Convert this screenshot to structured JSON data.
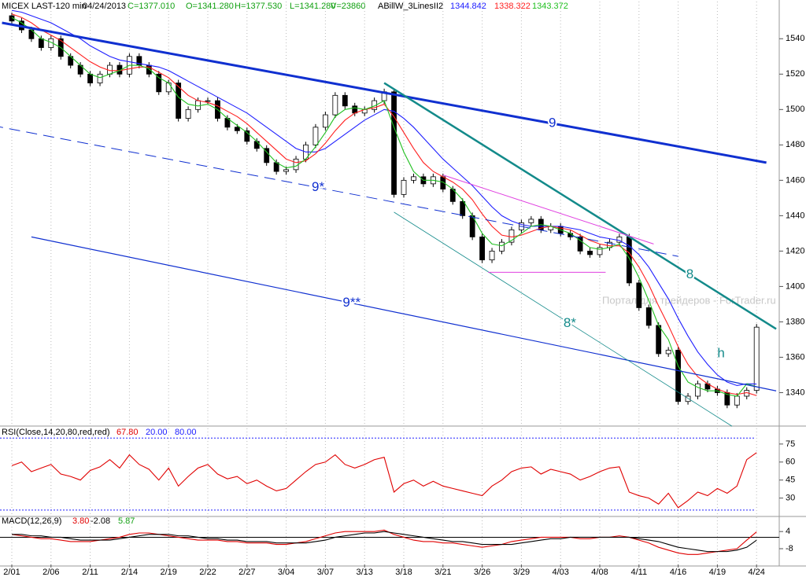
{
  "chart_data": [
    {
      "type": "candlestick",
      "title": "MICEX LAST-120 min",
      "date": "04/24/2013",
      "header": [
        "C=1377.010",
        "O=1341.280",
        "H=1377.530",
        "L=1341.280",
        "V=23860"
      ],
      "indicator": "ABillW_3LinesII2",
      "watermark": "Портал для трейдеров - ForTrader.ru",
      "categories": [
        "2/01",
        null,
        null,
        null,
        "2/06",
        null,
        null,
        null,
        "2/11",
        null,
        null,
        null,
        "2/14",
        null,
        null,
        null,
        "2/19",
        null,
        null,
        null,
        "2/22",
        null,
        null,
        null,
        "2/27",
        null,
        null,
        null,
        "3/04",
        null,
        null,
        null,
        "3/07",
        null,
        null,
        null,
        "3/13",
        null,
        null,
        null,
        "3/18",
        null,
        null,
        null,
        "3/21",
        null,
        null,
        null,
        "3/26",
        null,
        null,
        null,
        "3/29",
        null,
        null,
        null,
        "4/03",
        null,
        null,
        null,
        "4/08",
        null,
        null,
        null,
        "4/11",
        null,
        null,
        null,
        "4/16",
        null,
        null,
        null,
        "4/19",
        null,
        null,
        null,
        "4/24"
      ],
      "open": [
        1553,
        1550,
        1545,
        1540,
        1535,
        1540,
        1530,
        1525,
        1520,
        1515,
        1520,
        1525,
        1520,
        1530,
        1525,
        1520,
        1510,
        1515,
        1495,
        1500,
        1505,
        1505,
        1495,
        1490,
        1488,
        1482,
        1478,
        1470,
        1465,
        1466,
        1472,
        1480,
        1490,
        1497,
        1508,
        1502,
        1498,
        1500,
        1505,
        1510,
        1452,
        1460,
        1462,
        1458,
        1462,
        1455,
        1448,
        1440,
        1428,
        1415,
        1420,
        1425,
        1432,
        1436,
        1438,
        1432,
        1434,
        1430,
        1428,
        1420,
        1418,
        1422,
        1425,
        1428,
        1402,
        1388,
        1378,
        1362,
        1364,
        1335,
        1338,
        1345,
        1342,
        1340,
        1333,
        1338,
        1341.28
      ],
      "close": [
        1550,
        1545,
        1540,
        1535,
        1540,
        1530,
        1525,
        1520,
        1515,
        1520,
        1525,
        1520,
        1530,
        1525,
        1520,
        1510,
        1515,
        1495,
        1500,
        1505,
        1505,
        1495,
        1490,
        1488,
        1482,
        1478,
        1470,
        1465,
        1466,
        1472,
        1480,
        1490,
        1497,
        1508,
        1502,
        1498,
        1500,
        1505,
        1510,
        1452,
        1460,
        1462,
        1458,
        1462,
        1455,
        1448,
        1440,
        1428,
        1415,
        1420,
        1425,
        1432,
        1436,
        1438,
        1432,
        1434,
        1430,
        1428,
        1420,
        1418,
        1422,
        1425,
        1428,
        1402,
        1388,
        1378,
        1362,
        1364,
        1335,
        1338,
        1345,
        1342,
        1340,
        1333,
        1338,
        1341.28,
        1377.01
      ],
      "series": [
        {
          "name": "1344.842",
          "color": "#2020ff",
          "values": [
            1556,
            1555,
            1553,
            1551,
            1549,
            1546,
            1543,
            1540,
            1536,
            1533,
            1530,
            1528,
            1527,
            1526,
            1525,
            1524,
            1522,
            1519,
            1516,
            1513,
            1510,
            1507,
            1504,
            1501,
            1498,
            1494,
            1490,
            1486,
            1482,
            1478,
            1476,
            1476,
            1478,
            1482,
            1486,
            1490,
            1494,
            1497,
            1500,
            1499,
            1495,
            1490,
            1484,
            1478,
            1472,
            1467,
            1462,
            1457,
            1451,
            1445,
            1440,
            1437,
            1435,
            1434,
            1434,
            1434,
            1434,
            1433,
            1432,
            1430,
            1428,
            1427,
            1426,
            1423,
            1418,
            1411,
            1402,
            1393,
            1382,
            1372,
            1363,
            1356,
            1350,
            1346,
            1344,
            1345,
            1344.842
          ]
        },
        {
          "name": "1338.322",
          "color": "#ff2020",
          "values": [
            1554,
            1552,
            1549,
            1545,
            1542,
            1539,
            1535,
            1531,
            1527,
            1524,
            1522,
            1522,
            1523,
            1524,
            1524,
            1521,
            1518,
            1513,
            1508,
            1505,
            1504,
            1502,
            1499,
            1496,
            1492,
            1487,
            1482,
            1477,
            1472,
            1470,
            1471,
            1475,
            1481,
            1488,
            1494,
            1498,
            1500,
            1501,
            1503,
            1496,
            1487,
            1478,
            1470,
            1465,
            1462,
            1459,
            1455,
            1449,
            1441,
            1434,
            1429,
            1428,
            1429,
            1431,
            1433,
            1434,
            1433,
            1432,
            1429,
            1426,
            1424,
            1423,
            1423,
            1419,
            1411,
            1401,
            1389,
            1378,
            1366,
            1356,
            1349,
            1345,
            1342,
            1340,
            1339,
            1340,
            1338.322
          ]
        },
        {
          "name": "1343.372",
          "color": "#20c020",
          "values": [
            1552,
            1549,
            1545,
            1540,
            1538,
            1535,
            1530,
            1525,
            1520,
            1518,
            1520,
            1522,
            1525,
            1525,
            1523,
            1518,
            1515,
            1507,
            1503,
            1502,
            1503,
            1500,
            1495,
            1491,
            1487,
            1482,
            1476,
            1470,
            1467,
            1468,
            1472,
            1479,
            1487,
            1496,
            1500,
            1501,
            1500,
            1502,
            1505,
            1490,
            1476,
            1465,
            1460,
            1460,
            1459,
            1455,
            1449,
            1440,
            1430,
            1424,
            1423,
            1426,
            1430,
            1434,
            1435,
            1434,
            1432,
            1430,
            1426,
            1422,
            1421,
            1422,
            1424,
            1416,
            1405,
            1392,
            1378,
            1370,
            1355,
            1346,
            1343,
            1341,
            1341,
            1339,
            1338,
            1345,
            1343.372
          ]
        }
      ],
      "ylim": [
        1322,
        1561
      ],
      "yticks": [
        1340,
        1360,
        1380,
        1400,
        1420,
        1440,
        1460,
        1480,
        1500,
        1520,
        1540
      ],
      "trendlines": [
        {
          "label": "9",
          "from": [
            -1,
            1549
          ],
          "to": [
            77,
            1470
          ],
          "color": "#1030d0",
          "width": 3
        },
        {
          "label": "9*",
          "from": [
            -2,
            1491
          ],
          "to": [
            68,
            1417
          ],
          "color": "#1030d0",
          "width": 1,
          "dashed": true
        },
        {
          "label": "9**",
          "from": [
            2,
            1428
          ],
          "to": [
            78,
            1341
          ],
          "color": "#1030d0",
          "width": 1.2
        },
        {
          "label": "8",
          "from": [
            38,
            1515
          ],
          "to": [
            78,
            1376
          ],
          "color": "#138a8a",
          "width": 2.5
        },
        {
          "label": "8*",
          "from": [
            39,
            1442
          ],
          "to": [
            73.5,
            1321
          ],
          "color": "#138a8a",
          "width": 0.8
        },
        {
          "from": [
            44,
            1463
          ],
          "to": [
            65.5,
            1424
          ],
          "color": "#e040e0",
          "width": 1
        },
        {
          "from": [
            48.6,
            1408
          ],
          "to": [
            60.6,
            1408
          ],
          "color": "#e040e0",
          "width": 1
        }
      ],
      "annotations": [
        {
          "text": "h",
          "x": 72,
          "y": 1362,
          "color": "#138a8a"
        }
      ]
    },
    {
      "type": "line",
      "title": "RSI(Close,14,20,80,red,red)",
      "series": [
        {
          "color": "#e00000",
          "last_label": "67.80",
          "values": [
            57,
            60,
            52,
            55,
            58,
            50,
            48,
            45,
            53,
            56,
            62,
            55,
            66,
            58,
            54,
            45,
            55,
            40,
            48,
            55,
            58,
            50,
            46,
            48,
            42,
            45,
            40,
            36,
            38,
            45,
            52,
            58,
            60,
            66,
            58,
            55,
            58,
            62,
            64,
            35,
            42,
            45,
            40,
            44,
            40,
            38,
            36,
            34,
            32,
            40,
            45,
            52,
            55,
            56,
            50,
            54,
            52,
            50,
            45,
            48,
            52,
            55,
            56,
            35,
            32,
            30,
            25,
            34,
            22,
            28,
            35,
            32,
            38,
            34,
            40,
            62,
            67.8
          ]
        }
      ],
      "levels": [
        {
          "value": 20,
          "label": "20.00"
        },
        {
          "value": 80,
          "label": "80.00"
        }
      ],
      "ylim": [
        16,
        88
      ],
      "yticks": [
        30,
        45,
        60,
        75
      ]
    },
    {
      "type": "line",
      "title": "MACD(12,26,9)",
      "histogram_label": "5.87",
      "series": [
        {
          "color": "#e00000",
          "last_label": "3.80",
          "values": [
            2,
            1,
            0,
            -1,
            -1,
            -2,
            -3,
            -3,
            -3,
            -2,
            -1,
            0,
            2,
            3,
            3,
            2,
            1,
            0,
            -1,
            -2,
            -2,
            -2,
            -3,
            -3,
            -4,
            -4,
            -4,
            -5,
            -5,
            -4,
            -3,
            -1,
            1,
            3,
            4,
            4,
            4,
            4,
            5,
            2,
            0,
            -2,
            -3,
            -3,
            -4,
            -4,
            -5,
            -6,
            -7,
            -6,
            -5,
            -3,
            -2,
            -1,
            0,
            0,
            0,
            0,
            -1,
            -1,
            0,
            0,
            1,
            0,
            -2,
            -4,
            -7,
            -9,
            -11,
            -12,
            -12,
            -11,
            -10,
            -9,
            -8,
            -2,
            3.8
          ]
        },
        {
          "color": "#000000",
          "last_label": "-2.08",
          "values": [
            2,
            2,
            1,
            1,
            0,
            0,
            -1,
            -2,
            -2,
            -2,
            -2,
            -1,
            0,
            1,
            2,
            2,
            2,
            1,
            1,
            0,
            -1,
            -1,
            -2,
            -2,
            -3,
            -3,
            -3,
            -4,
            -4,
            -4,
            -4,
            -3,
            -2,
            0,
            1,
            2,
            3,
            3,
            4,
            3,
            2,
            1,
            0,
            -1,
            -2,
            -3,
            -3,
            -4,
            -5,
            -5,
            -5,
            -5,
            -4,
            -3,
            -2,
            -1,
            -1,
            0,
            0,
            0,
            0,
            0,
            0,
            0,
            -1,
            -2,
            -3,
            -5,
            -7,
            -8,
            -9,
            -10,
            -10,
            -10,
            -9,
            -7,
            -2.08
          ]
        }
      ],
      "ylim": [
        -19,
        14
      ],
      "yticks": [
        4,
        -8
      ]
    }
  ]
}
